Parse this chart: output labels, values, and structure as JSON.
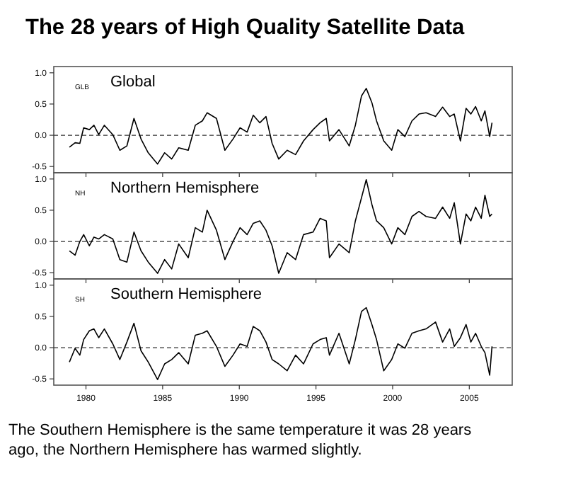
{
  "chart_data": [
    {
      "type": "line",
      "title": "The 28 years of High Quality Satellite Data",
      "annotations": [
        "GLB",
        "Global"
      ],
      "x": [
        1978.92,
        1979.29,
        1979.6,
        1979.85,
        1980.22,
        1980.52,
        1980.83,
        1981.2,
        1981.75,
        1982.21,
        1982.67,
        1983.13,
        1983.59,
        1984.06,
        1984.67,
        1985.13,
        1985.59,
        1986.05,
        1986.67,
        1987.13,
        1987.59,
        1987.9,
        1988.51,
        1989.06,
        1989.59,
        1990.05,
        1990.51,
        1990.91,
        1991.34,
        1991.74,
        1992.14,
        1992.57,
        1993.12,
        1993.67,
        1994.19,
        1994.81,
        1995.27,
        1995.67,
        1995.88,
        1996.5,
        1997.17,
        1997.57,
        1997.97,
        1998.28,
        1998.65,
        1998.95,
        1999.42,
        1999.94,
        2000.34,
        2000.8,
        2001.26,
        2001.72,
        2002.18,
        2002.8,
        2003.26,
        2003.72,
        2004.02,
        2004.42,
        2004.79,
        2005.1,
        2005.41,
        2005.78,
        2006.02,
        2006.33,
        2006.48
      ],
      "series": [
        {
          "color": "#000000",
          "values": [
            -0.19,
            -0.12,
            -0.13,
            0.12,
            0.09,
            0.16,
            0.01,
            0.16,
            0.01,
            -0.24,
            -0.17,
            0.27,
            -0.06,
            -0.28,
            -0.46,
            -0.28,
            -0.38,
            -0.2,
            -0.24,
            0.16,
            0.23,
            0.36,
            0.27,
            -0.24,
            -0.06,
            0.12,
            0.05,
            0.32,
            0.2,
            0.3,
            -0.13,
            -0.38,
            -0.24,
            -0.31,
            -0.09,
            0.09,
            0.2,
            0.27,
            -0.09,
            0.09,
            -0.17,
            0.16,
            0.63,
            0.75,
            0.52,
            0.23,
            -0.09,
            -0.24,
            0.09,
            -0.02,
            0.23,
            0.34,
            0.36,
            0.3,
            0.45,
            0.3,
            0.34,
            -0.09,
            0.43,
            0.34,
            0.46,
            0.23,
            0.39,
            -0.02,
            0.2
          ]
        }
      ],
      "xlim": [
        1977.9,
        2007.8
      ],
      "xticks": [
        {
          "value": 1980,
          "label": null
        },
        {
          "value": 1985,
          "label": null
        },
        {
          "value": 1990,
          "label": null
        },
        {
          "value": 1995,
          "label": null
        },
        {
          "value": 2000,
          "label": null
        },
        {
          "value": 2005,
          "label": null
        }
      ],
      "ylim": [
        -0.6,
        1.1
      ],
      "yticks": [
        {
          "value": -0.5,
          "label": "-0.5"
        },
        {
          "value": 0,
          "label": "0.0"
        },
        {
          "value": 0.5,
          "label": "0.5"
        },
        {
          "value": 1,
          "label": "1.0"
        }
      ],
      "tick_labels": "y",
      "ref_lines": [
        {
          "axis": "y",
          "value": 0,
          "line_style": "dashed"
        }
      ]
    },
    {
      "type": "line",
      "annotations": [
        "NH",
        "Northern Hemisphere"
      ],
      "x": [
        1978.92,
        1979.29,
        1979.6,
        1979.85,
        1980.22,
        1980.52,
        1980.83,
        1981.2,
        1981.75,
        1982.21,
        1982.67,
        1983.13,
        1983.59,
        1984.06,
        1984.67,
        1985.13,
        1985.59,
        1986.05,
        1986.67,
        1987.13,
        1987.59,
        1987.9,
        1988.51,
        1989.06,
        1989.59,
        1990.05,
        1990.51,
        1990.91,
        1991.34,
        1991.74,
        1992.14,
        1992.57,
        1993.12,
        1993.67,
        1994.19,
        1994.81,
        1995.27,
        1995.67,
        1995.88,
        1996.5,
        1997.17,
        1997.57,
        1997.97,
        1998.28,
        1998.65,
        1998.95,
        1999.42,
        1999.94,
        2000.34,
        2000.8,
        2001.26,
        2001.72,
        2002.18,
        2002.8,
        2003.26,
        2003.72,
        2004.02,
        2004.42,
        2004.79,
        2005.1,
        2005.41,
        2005.78,
        2006.02,
        2006.33,
        2006.48
      ],
      "series": [
        {
          "color": "#000000",
          "values": [
            -0.15,
            -0.22,
            0,
            0.11,
            -0.07,
            0.07,
            0.04,
            0.11,
            0.04,
            -0.29,
            -0.33,
            0.15,
            -0.15,
            -0.33,
            -0.51,
            -0.29,
            -0.44,
            -0.04,
            -0.26,
            0.22,
            0.15,
            0.5,
            0.18,
            -0.29,
            0,
            0.22,
            0.11,
            0.29,
            0.33,
            0.18,
            -0.07,
            -0.51,
            -0.18,
            -0.29,
            0.11,
            0.15,
            0.37,
            0.33,
            -0.26,
            -0.04,
            -0.18,
            0.33,
            0.7,
            0.99,
            0.59,
            0.33,
            0.22,
            -0.04,
            0.22,
            0.11,
            0.4,
            0.48,
            0.4,
            0.37,
            0.55,
            0.37,
            0.62,
            -0.04,
            0.44,
            0.33,
            0.55,
            0.37,
            0.74,
            0.4,
            0.44
          ]
        }
      ],
      "xlim": [
        1977.9,
        2007.8
      ],
      "xticks": [
        {
          "value": 1980,
          "label": null
        },
        {
          "value": 1985,
          "label": null
        },
        {
          "value": 1990,
          "label": null
        },
        {
          "value": 1995,
          "label": null
        },
        {
          "value": 2000,
          "label": null
        },
        {
          "value": 2005,
          "label": null
        }
      ],
      "ylim": [
        -0.6,
        1.1
      ],
      "yticks": [
        {
          "value": -0.5,
          "label": "-0.5"
        },
        {
          "value": 0,
          "label": "0.0"
        },
        {
          "value": 0.5,
          "label": "0.5"
        },
        {
          "value": 1,
          "label": "1.0"
        }
      ],
      "tick_labels": "y",
      "ref_lines": [
        {
          "axis": "y",
          "value": 0,
          "line_style": "dashed"
        }
      ]
    },
    {
      "type": "line",
      "annotations": [
        "SH",
        "Southern Hemisphere",
        "The Southern Hemisphere is the same temperature it was 28 years ago, the Northern Hemisphere has warmed slightly."
      ],
      "x": [
        1978.92,
        1979.29,
        1979.6,
        1979.85,
        1980.22,
        1980.52,
        1980.83,
        1981.2,
        1981.75,
        1982.21,
        1982.67,
        1983.13,
        1983.59,
        1984.06,
        1984.67,
        1985.13,
        1985.59,
        1986.05,
        1986.67,
        1987.13,
        1987.59,
        1987.9,
        1988.51,
        1989.06,
        1989.59,
        1990.05,
        1990.51,
        1990.91,
        1991.34,
        1991.74,
        1992.14,
        1992.57,
        1993.12,
        1993.67,
        1994.19,
        1994.81,
        1995.27,
        1995.67,
        1995.88,
        1996.5,
        1997.17,
        1997.57,
        1997.97,
        1998.28,
        1998.65,
        1998.95,
        1999.42,
        1999.94,
        2000.34,
        2000.8,
        2001.26,
        2001.72,
        2002.18,
        2002.8,
        2003.26,
        2003.72,
        2004.02,
        2004.42,
        2004.79,
        2005.1,
        2005.41,
        2005.78,
        2006.02,
        2006.33,
        2006.48
      ],
      "series": [
        {
          "color": "#000000",
          "values": [
            -0.23,
            -0.01,
            -0.12,
            0.13,
            0.27,
            0.3,
            0.16,
            0.3,
            0.06,
            -0.19,
            0.09,
            0.39,
            -0.05,
            -0.23,
            -0.51,
            -0.26,
            -0.19,
            -0.08,
            -0.26,
            0.2,
            0.23,
            0.27,
            0.02,
            -0.3,
            -0.12,
            0.06,
            0.02,
            0.34,
            0.27,
            0.09,
            -0.19,
            -0.26,
            -0.37,
            -0.12,
            -0.26,
            0.06,
            0.13,
            0.16,
            -0.12,
            0.23,
            -0.26,
            0.13,
            0.58,
            0.64,
            0.37,
            0.13,
            -0.37,
            -0.19,
            0.06,
            -0.01,
            0.23,
            0.27,
            0.3,
            0.41,
            0.09,
            0.3,
            0.02,
            0.16,
            0.37,
            0.09,
            0.23,
            0.02,
            -0.08,
            -0.44,
            0.02
          ]
        }
      ],
      "xlim": [
        1977.9,
        2007.8
      ],
      "xticks": [
        1980,
        1985,
        1990,
        1995,
        2000,
        2005
      ],
      "ylim": [
        -0.6,
        1.1
      ],
      "yticks": [
        {
          "value": -0.5,
          "label": "-0.5"
        },
        {
          "value": 0,
          "label": "0.0"
        },
        {
          "value": 0.5,
          "label": "0.5"
        },
        {
          "value": 1,
          "label": "1.0"
        }
      ],
      "ref_lines": [
        {
          "axis": "y",
          "value": 0,
          "line_style": "dashed"
        }
      ]
    }
  ]
}
